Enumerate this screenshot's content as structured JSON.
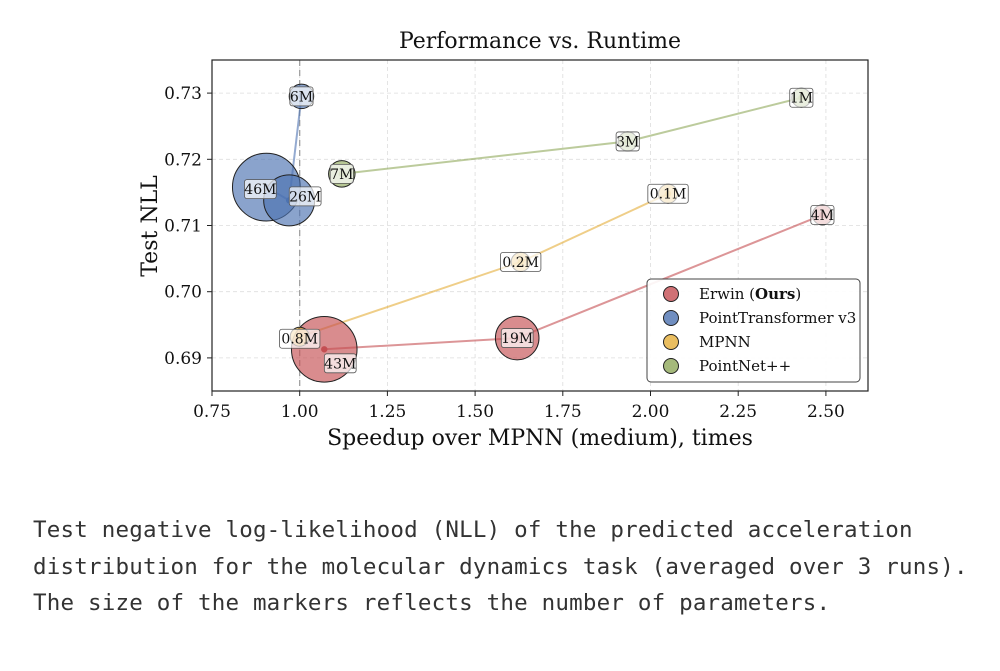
{
  "chart_data": {
    "type": "scatter",
    "title": "Performance vs. Runtime",
    "xlabel": "Speedup over MPNN (medium), times",
    "ylabel": "Test NLL",
    "xlim": [
      0.75,
      2.62
    ],
    "ylim": [
      0.685,
      0.735
    ],
    "xticks": [
      0.75,
      1.0,
      1.25,
      1.5,
      1.75,
      2.0,
      2.25,
      2.5
    ],
    "xtick_labels": [
      "0.75",
      "1.00",
      "1.25",
      "1.50",
      "1.75",
      "2.00",
      "2.25",
      "2.50"
    ],
    "yticks": [
      0.69,
      0.7,
      0.71,
      0.72,
      0.73
    ],
    "ytick_labels": [
      "0.69",
      "0.70",
      "0.71",
      "0.72",
      "0.73"
    ],
    "grid": true,
    "reference_line_x": 1.0,
    "legend_position": "lower-right",
    "series": [
      {
        "name": "Erwin (Ours)",
        "name_plain": "Erwin (",
        "name_bold": "Ours",
        "name_end": ")",
        "color": "#c44e52",
        "points": [
          {
            "x": 1.07,
            "y": 0.6913,
            "label": "43M",
            "size": 43
          },
          {
            "x": 1.62,
            "y": 0.693,
            "label": "19M",
            "size": 19
          },
          {
            "x": 2.49,
            "y": 0.7116,
            "label": "4M",
            "size": 4
          }
        ]
      },
      {
        "name": "PointTransformer v3",
        "color": "#4c72b0",
        "points": [
          {
            "x": 0.905,
            "y": 0.7158,
            "label": "46M",
            "size": 46
          },
          {
            "x": 0.97,
            "y": 0.7138,
            "label": "26M",
            "size": 26
          },
          {
            "x": 1.005,
            "y": 0.7295,
            "label": "6M",
            "size": 6
          }
        ]
      },
      {
        "name": "MPNN",
        "color": "#dd8452",
        "fill": "#e5ae38",
        "points": [
          {
            "x": 1.0,
            "y": 0.6932,
            "label": "0.8M",
            "size": 0.8
          },
          {
            "x": 1.63,
            "y": 0.7045,
            "label": "0.2M",
            "size": 0.2
          },
          {
            "x": 2.05,
            "y": 0.7148,
            "label": "0.1M",
            "size": 0.1
          }
        ]
      },
      {
        "name": "PointNet++",
        "color": "#8fa85a",
        "points": [
          {
            "x": 1.12,
            "y": 0.7178,
            "label": "7M",
            "size": 7
          },
          {
            "x": 1.935,
            "y": 0.7227,
            "label": "3M",
            "size": 3
          },
          {
            "x": 2.43,
            "y": 0.7293,
            "label": "1M",
            "size": 1
          }
        ]
      }
    ]
  },
  "caption": "Test negative log-likelihood (NLL) of the predicted acceleration distribution for the molecular dynamics task (averaged over 3 runs). The size of the markers reflects the number of parameters."
}
